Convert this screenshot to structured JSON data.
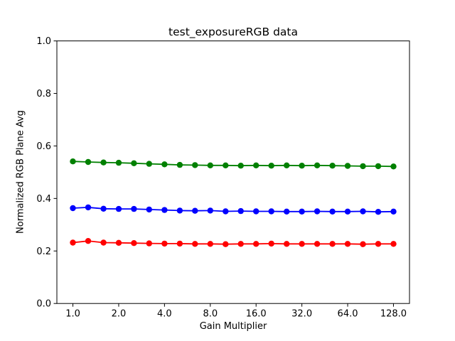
{
  "figure": {
    "background": "#ffffff",
    "border_color": "#000000"
  },
  "chart_data": {
    "type": "line",
    "title": "test_exposureRGB data",
    "xlabel": "Gain Multiplier",
    "ylabel": "Normalized RGB Plane Avg",
    "x_scale": "log2",
    "xlim": [
      1.0,
      128.0
    ],
    "ylim": [
      0.0,
      1.0
    ],
    "grid": false,
    "legend": "none",
    "marker": "circle",
    "x_ticks": {
      "values": [
        1.0,
        2.0,
        4.0,
        8.0,
        16.0,
        32.0,
        64.0,
        128.0
      ],
      "labels": [
        "1.0",
        "2.0",
        "4.0",
        "8.0",
        "16.0",
        "32.0",
        "64.0",
        "128.0"
      ]
    },
    "y_ticks": {
      "values": [
        0.0,
        0.2,
        0.4,
        0.6,
        0.8,
        1.0
      ],
      "labels": [
        "0.0",
        "0.2",
        "0.4",
        "0.6",
        "0.8",
        "1.0"
      ]
    },
    "x": [
      1.0,
      1.26,
      1.59,
      2.0,
      2.52,
      3.17,
      4.0,
      5.04,
      6.35,
      8.0,
      10.08,
      12.7,
      16.0,
      20.16,
      25.4,
      32.0,
      40.32,
      50.8,
      64.0,
      80.63,
      101.59,
      128.0
    ],
    "series": [
      {
        "name": "red-plane",
        "color": "#ff0000",
        "values": [
          0.232,
          0.238,
          0.232,
          0.231,
          0.23,
          0.229,
          0.228,
          0.228,
          0.227,
          0.227,
          0.226,
          0.227,
          0.227,
          0.228,
          0.227,
          0.227,
          0.227,
          0.227,
          0.227,
          0.226,
          0.227,
          0.227
        ]
      },
      {
        "name": "green-plane",
        "color": "#008000",
        "values": [
          0.541,
          0.539,
          0.537,
          0.536,
          0.534,
          0.532,
          0.53,
          0.528,
          0.527,
          0.526,
          0.526,
          0.525,
          0.526,
          0.525,
          0.526,
          0.525,
          0.526,
          0.525,
          0.524,
          0.523,
          0.523,
          0.522
        ]
      },
      {
        "name": "blue-plane",
        "color": "#0000ff",
        "values": [
          0.363,
          0.366,
          0.361,
          0.36,
          0.36,
          0.358,
          0.356,
          0.354,
          0.353,
          0.354,
          0.351,
          0.352,
          0.351,
          0.351,
          0.35,
          0.35,
          0.351,
          0.35,
          0.35,
          0.351,
          0.349,
          0.35
        ]
      }
    ]
  }
}
